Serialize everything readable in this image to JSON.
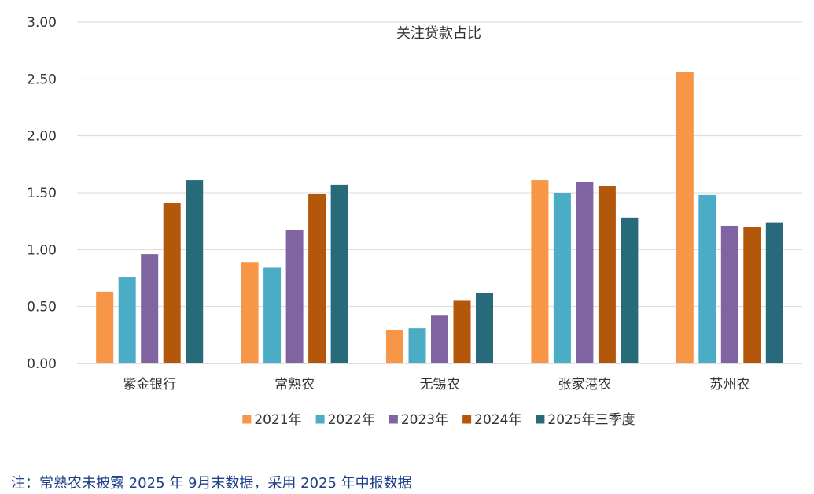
{
  "chart_data": {
    "type": "bar",
    "title": "关注贷款占比",
    "xlabel": "",
    "ylabel": "",
    "ylim": [
      0,
      3.0
    ],
    "y_ticks": [
      "0.00",
      "0.50",
      "1.00",
      "1.50",
      "2.00",
      "2.50",
      "3.00"
    ],
    "grid": true,
    "legend_position": "bottom",
    "categories": [
      "紫金银行",
      "常熟农",
      "无锡农",
      "张家港农",
      "苏州农"
    ],
    "series": [
      {
        "name": "2021年",
        "color": "#F79646",
        "values": [
          0.63,
          0.89,
          0.29,
          1.61,
          2.56
        ]
      },
      {
        "name": "2022年",
        "color": "#4BACC6",
        "values": [
          0.76,
          0.84,
          0.31,
          1.5,
          1.48
        ]
      },
      {
        "name": "2023年",
        "color": "#8064A2",
        "values": [
          0.96,
          1.17,
          0.42,
          1.59,
          1.21
        ]
      },
      {
        "name": "2024年",
        "color": "#B3570A",
        "values": [
          1.41,
          1.49,
          0.55,
          1.56,
          1.2
        ]
      },
      {
        "name": "2025年三季度",
        "color": "#276A7A",
        "values": [
          1.61,
          1.57,
          0.62,
          1.28,
          1.24
        ]
      }
    ]
  },
  "footnote": "注：常熟农未披露 2025 年 9月末数据，采用 2025 年中报数据"
}
